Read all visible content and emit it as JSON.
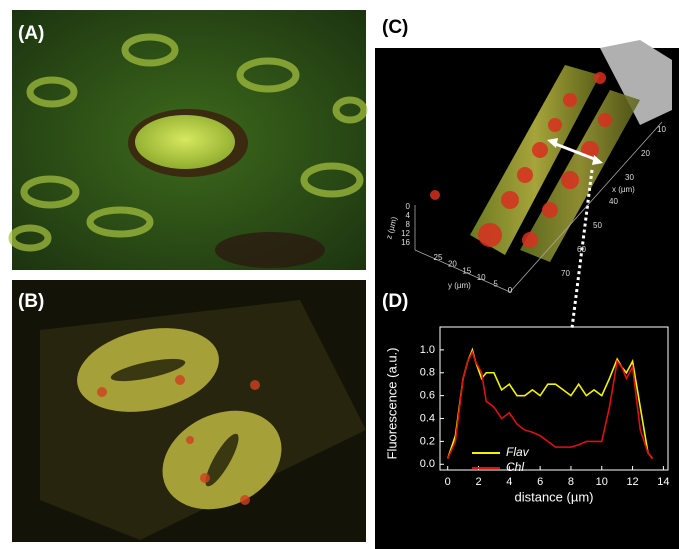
{
  "panels": [
    {
      "label": "(A)"
    },
    {
      "label": "(B)"
    },
    {
      "label": "(C)"
    },
    {
      "label": "(D)"
    }
  ],
  "panel_c": {
    "x_label": "x (µm)",
    "y_label": "y (µm)",
    "z_label": "z (µm)",
    "x_ticks": [
      10,
      20,
      30,
      40,
      50,
      60,
      70
    ],
    "y_ticks": [
      25,
      20,
      15,
      10,
      5,
      0
    ],
    "z_ticks": [
      0,
      4,
      8,
      12,
      16
    ]
  },
  "chart_data": {
    "type": "line",
    "x_label": "distance (µm)",
    "y_label": "Fluorescence (a.u.)",
    "x": [
      0,
      0.5,
      1,
      1.3,
      1.6,
      1.8,
      2.2,
      2.5,
      3,
      3.5,
      4,
      4.5,
      5,
      5.5,
      6,
      6.5,
      7,
      7.5,
      8,
      8.5,
      9,
      9.5,
      10,
      10.5,
      11,
      11.3,
      11.6,
      12,
      12.5,
      13,
      13.3
    ],
    "series": [
      {
        "name": "Flav",
        "color": "#f2f200",
        "values": [
          0.05,
          0.25,
          0.75,
          0.9,
          1.0,
          0.9,
          0.75,
          0.8,
          0.8,
          0.65,
          0.7,
          0.6,
          0.6,
          0.65,
          0.6,
          0.7,
          0.7,
          0.65,
          0.6,
          0.7,
          0.6,
          0.65,
          0.6,
          0.75,
          0.92,
          0.85,
          0.8,
          0.9,
          0.5,
          0.1,
          0.05
        ]
      },
      {
        "name": "Chl",
        "color": "#e01010",
        "values": [
          0.05,
          0.2,
          0.75,
          0.9,
          0.98,
          0.9,
          0.8,
          0.55,
          0.5,
          0.4,
          0.45,
          0.35,
          0.3,
          0.28,
          0.25,
          0.2,
          0.15,
          0.15,
          0.15,
          0.17,
          0.2,
          0.2,
          0.2,
          0.5,
          0.9,
          0.85,
          0.75,
          0.85,
          0.3,
          0.1,
          0.05
        ]
      }
    ],
    "xlim": [
      -0.5,
      14.3
    ],
    "ylim": [
      -0.05,
      1.2
    ],
    "xticks": [
      0,
      2,
      4,
      6,
      8,
      10,
      12,
      14
    ],
    "yticks": [
      {
        "value": 0,
        "label": "0.0"
      },
      0.2,
      0.4,
      0.6,
      0.8,
      {
        "value": 1,
        "label": "1.0"
      }
    ],
    "legend": "lower left"
  }
}
